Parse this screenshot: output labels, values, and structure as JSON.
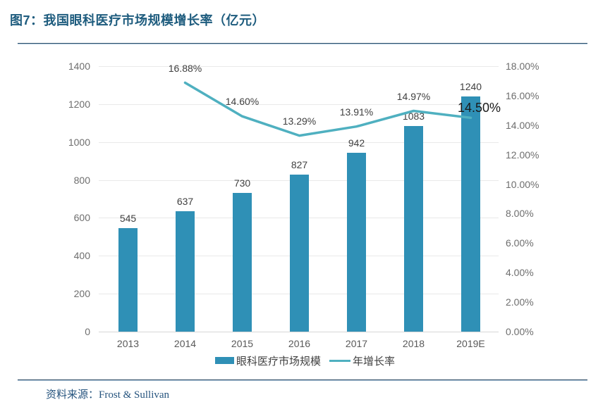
{
  "header": {
    "title": "图7：我国眼科医疗市场规模增长率（亿元）"
  },
  "chart_data": {
    "type": "bar+line",
    "title": "我国眼科医疗市场规模增长率（亿元）",
    "categories": [
      "2013",
      "2014",
      "2015",
      "2016",
      "2017",
      "2018",
      "2019E"
    ],
    "series": [
      {
        "name": "眼科医疗市场规模",
        "type": "bar",
        "axis": "left",
        "values": [
          545,
          637,
          730,
          827,
          942,
          1083,
          1240
        ],
        "labels": [
          "545",
          "637",
          "730",
          "827",
          "942",
          "1083",
          "1240"
        ],
        "color": "#2F90B6"
      },
      {
        "name": "年增长率",
        "type": "line",
        "axis": "right",
        "values": [
          null,
          16.88,
          14.6,
          13.29,
          13.91,
          14.97,
          14.5
        ],
        "labels": [
          null,
          "16.88%",
          "14.60%",
          "13.29%",
          "13.91%",
          "14.97%",
          "14.50%"
        ],
        "emphasis_index": 6,
        "color": "#4FB0C0"
      }
    ],
    "left_axis": {
      "min": 0,
      "max": 1400,
      "step": 200,
      "ticks_top_to_bottom": [
        "1400",
        "1200",
        "1000",
        "800",
        "600",
        "400",
        "200",
        "0"
      ]
    },
    "right_axis": {
      "min": 0,
      "max": 18,
      "step": 2,
      "ticks_top_to_bottom": [
        "18.00%",
        "16.00%",
        "14.00%",
        "12.00%",
        "10.00%",
        "8.00%",
        "6.00%",
        "4.00%",
        "2.00%",
        "0.00%"
      ]
    },
    "legend": [
      "眼科医疗市场规模",
      "年增长率"
    ],
    "grid": true,
    "legend_position": "bottom"
  },
  "footer": {
    "source_label": "资料来源：",
    "source_value": "Frost & Sullivan"
  },
  "colors": {
    "bar": "#2F90B6",
    "line": "#4FB0C0",
    "title": "#1E5C7E",
    "grid": "#E9E9E9",
    "axis_text": "#6E6E6E",
    "label_text": "#3F3F3F",
    "rule": "#24435F",
    "source_text": "#26547E"
  }
}
